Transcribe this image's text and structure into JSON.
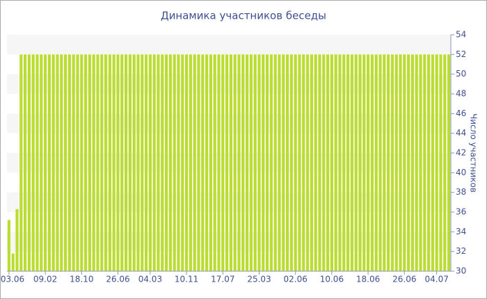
{
  "chart_data": {
    "type": "bar",
    "title": "Динамика участников беседы",
    "y_label": "Число участников",
    "categories": [
      "03.06",
      null,
      null,
      null,
      null,
      null,
      null,
      null,
      null,
      "09.02",
      null,
      null,
      null,
      null,
      null,
      null,
      null,
      null,
      "18.10",
      null,
      null,
      null,
      null,
      null,
      null,
      null,
      null,
      "26.06",
      null,
      null,
      null,
      null,
      null,
      null,
      null,
      "04.03",
      null,
      null,
      null,
      null,
      null,
      null,
      null,
      null,
      "10.11",
      null,
      null,
      null,
      null,
      null,
      null,
      null,
      null,
      "17.07",
      null,
      null,
      null,
      null,
      null,
      null,
      null,
      null,
      "25.03",
      null,
      null,
      null,
      null,
      null,
      null,
      null,
      null,
      "02.06",
      null,
      null,
      null,
      null,
      null,
      null,
      null,
      null,
      "10.06",
      null,
      null,
      null,
      null,
      null,
      null,
      null,
      null,
      "18.06",
      null,
      null,
      null,
      null,
      null,
      null,
      null,
      null,
      "26.06",
      null,
      null,
      null,
      null,
      null,
      null,
      null,
      "04.07",
      null,
      null,
      null
    ],
    "values": [
      35.2,
      31.8,
      36.3,
      52,
      52,
      52,
      52,
      52,
      52,
      52,
      52,
      52,
      52,
      52,
      52,
      52,
      52,
      52,
      52,
      52,
      52,
      52,
      52,
      52,
      52,
      52,
      52,
      52,
      52,
      52,
      52,
      52,
      52,
      52,
      52,
      52,
      52,
      52,
      52,
      52,
      52,
      52,
      52,
      52,
      52,
      52,
      52,
      52,
      52,
      52,
      52,
      52,
      52,
      52,
      52,
      52,
      52,
      52,
      52,
      52,
      52,
      52,
      52,
      52,
      52,
      52,
      52,
      52,
      52,
      52,
      52,
      52,
      52,
      52,
      52,
      52,
      52,
      52,
      52,
      52,
      52,
      52,
      52,
      52,
      52,
      52,
      52,
      52,
      52,
      52,
      52,
      52,
      52,
      52,
      52,
      52,
      52,
      52,
      52,
      52,
      52,
      52,
      52,
      52,
      52,
      52,
      52,
      52,
      52,
      52
    ],
    "color": "#bbdd33",
    "ylim": [
      30,
      54
    ],
    "yticks": [
      30,
      32,
      34,
      36,
      38,
      40,
      42,
      44,
      46,
      48,
      50,
      52,
      54
    ],
    "y_axis_side": "right",
    "grid": true
  }
}
